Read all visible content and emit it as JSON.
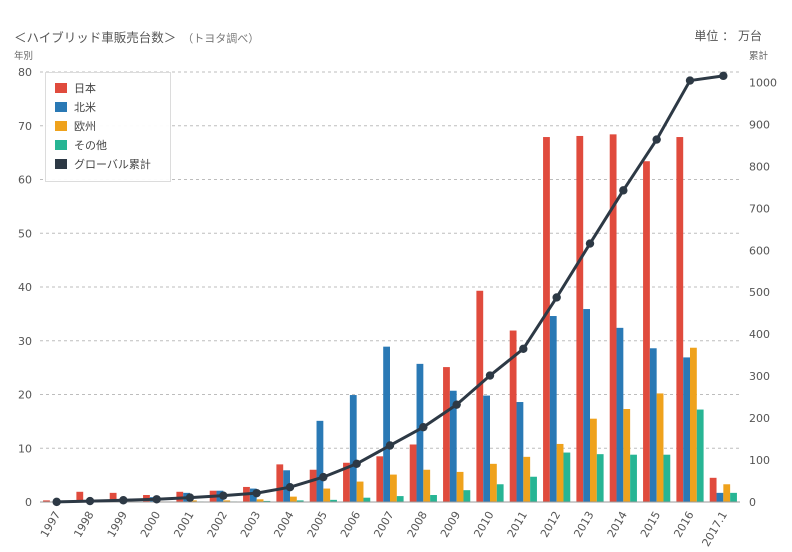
{
  "header": {
    "title": "＜ハイブリッド車販売台数＞",
    "source": "（トヨタ調べ）",
    "unit": "単位 ： 万台"
  },
  "chart_data": {
    "type": "bar",
    "left_axis_label": "年別",
    "right_axis_label": "累計",
    "categories": [
      "1997",
      "1998",
      "1999",
      "2000",
      "2001",
      "2002",
      "2003",
      "2004",
      "2005",
      "2006",
      "2007",
      "2008",
      "2009",
      "2010",
      "2011",
      "2012",
      "2013",
      "2014",
      "2015",
      "2016",
      "2017.1"
    ],
    "ylim": [
      0,
      80
    ],
    "y_ticks": [
      0,
      10,
      20,
      30,
      40,
      50,
      60,
      70,
      80
    ],
    "y2lim": [
      0,
      1025
    ],
    "y2_ticks": [
      0,
      100,
      200,
      300,
      400,
      500,
      600,
      700,
      800,
      900,
      1000
    ],
    "grid": true,
    "legend_position": "top-left",
    "series": [
      {
        "name": "日本",
        "color": "#e04b3d",
        "values": [
          0.3,
          1.9,
          1.7,
          1.3,
          1.9,
          2.1,
          2.8,
          7.0,
          6.0,
          7.3,
          8.5,
          10.7,
          25.1,
          39.3,
          31.9,
          67.9,
          68.1,
          68.4,
          63.4,
          67.9,
          4.5
        ]
      },
      {
        "name": "北米",
        "color": "#2a79b5",
        "values": [
          0,
          0,
          0.3,
          0.9,
          1.7,
          2.1,
          2.5,
          5.9,
          15.1,
          19.9,
          28.9,
          25.7,
          20.7,
          19.8,
          18.6,
          34.6,
          35.9,
          32.4,
          28.6,
          26.9,
          1.7
        ]
      },
      {
        "name": "欧州",
        "color": "#efa21c",
        "values": [
          0,
          0,
          0,
          0.1,
          0.3,
          0.3,
          0.5,
          1.0,
          2.5,
          3.8,
          5.1,
          6.0,
          5.6,
          7.1,
          8.4,
          10.8,
          15.5,
          17.3,
          20.2,
          28.7,
          3.3
        ]
      },
      {
        "name": "その他",
        "color": "#27b594",
        "values": [
          0,
          0,
          0,
          0,
          0.1,
          0.1,
          0.2,
          0.3,
          0.4,
          0.8,
          1.1,
          1.3,
          2.2,
          3.3,
          4.7,
          9.2,
          8.9,
          8.8,
          8.8,
          17.2,
          1.7
        ]
      },
      {
        "name": "グローバル累計",
        "type": "line",
        "axis": "right",
        "color": "#2d3945",
        "values": [
          0.3,
          2.2,
          4.2,
          6.5,
          10.5,
          15.1,
          21.1,
          35.3,
          59.3,
          91.1,
          134.7,
          178.4,
          232.0,
          301.5,
          365.1,
          487.6,
          616.0,
          742.9,
          863.9,
          1004.6,
          1015.8
        ]
      }
    ]
  }
}
